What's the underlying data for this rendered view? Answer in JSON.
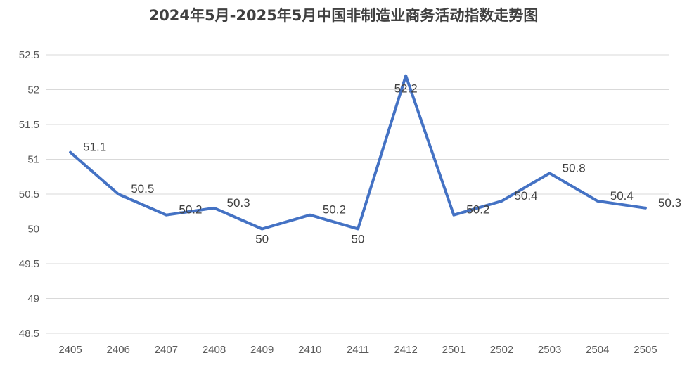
{
  "chart_data": {
    "type": "line",
    "title": "2024年5月-2025年5月中国非制造业商务活动指数走势图",
    "xlabel": "",
    "ylabel": "",
    "categories": [
      "2405",
      "2406",
      "2407",
      "2408",
      "2409",
      "2410",
      "2411",
      "2412",
      "2501",
      "2502",
      "2503",
      "2504",
      "2505"
    ],
    "series": [
      {
        "values": [
          51.1,
          50.5,
          50.2,
          50.3,
          50,
          50.2,
          50,
          52.2,
          50.2,
          50.4,
          50.8,
          50.4,
          50.3
        ]
      }
    ],
    "data_labels": [
      "51.1",
      "50.5",
      "50.2",
      "50.3",
      "50",
      "50.2",
      "50",
      "52.2",
      "50.2",
      "50.4",
      "50.8",
      "50.4",
      "50.3"
    ],
    "ylim": [
      48.5,
      52.5
    ],
    "yticks": [
      48.5,
      49,
      49.5,
      50,
      50.5,
      51,
      51.5,
      52,
      52.5
    ],
    "ytick_labels": [
      "48.5",
      "49",
      "49.5",
      "50",
      "50.5",
      "51",
      "51.5",
      "52",
      "52.5"
    ],
    "grid": true,
    "line_color": "#4472C4",
    "grid_color": "#D9D9D9"
  }
}
